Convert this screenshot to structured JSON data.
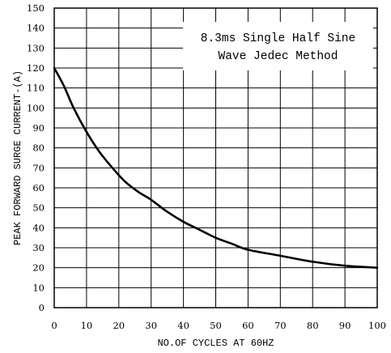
{
  "chart_data": {
    "type": "line",
    "title": "",
    "xlabel": "NO.OF CYCLES AT 60HZ",
    "ylabel": "PEAK FORWARD SURGE CURRENT-(A)",
    "xlim": [
      0,
      100
    ],
    "ylim": [
      0,
      150
    ],
    "x_ticks": [
      0,
      10,
      20,
      30,
      40,
      50,
      60,
      70,
      80,
      90,
      100
    ],
    "y_ticks": [
      0,
      10,
      20,
      30,
      40,
      50,
      60,
      70,
      80,
      90,
      100,
      110,
      120,
      130,
      140,
      150
    ],
    "grid": true,
    "annotation": {
      "line1": "8.3ms Single Half Sine",
      "line2": "Wave Jedec Method",
      "position": "top-right"
    },
    "series": [
      {
        "x": [
          0,
          3,
          6,
          10,
          14,
          18,
          22,
          26,
          30,
          35,
          40,
          45,
          50,
          55,
          60,
          70,
          80,
          90,
          100
        ],
        "y": [
          120,
          111,
          100,
          88,
          78,
          70,
          63,
          58,
          54,
          48,
          43,
          39,
          35,
          32,
          29,
          26,
          23,
          21,
          20
        ]
      }
    ]
  }
}
